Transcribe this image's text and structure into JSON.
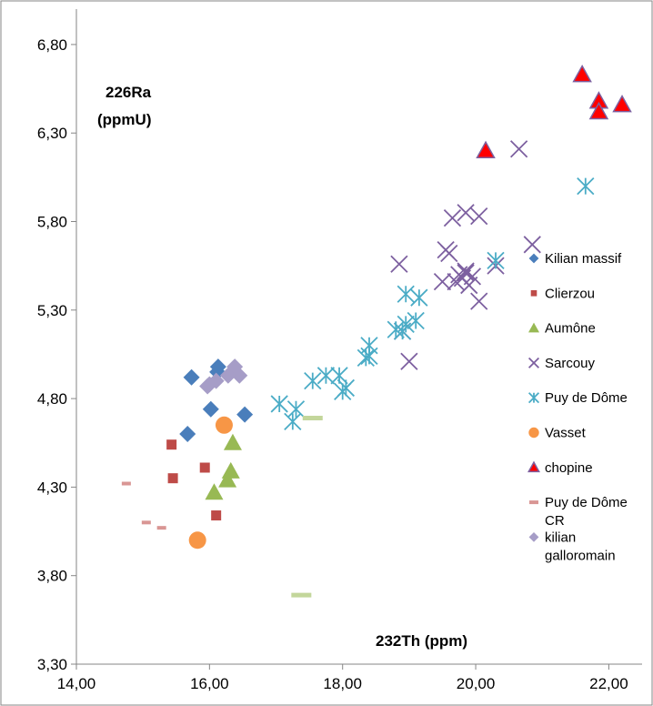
{
  "chart_data": {
    "type": "scatter",
    "title": "",
    "ylabel_line1": "226Ra",
    "ylabel_line2": "(ppmU)",
    "xlabel": "232Th (ppm)",
    "xlim": [
      14,
      22.5
    ],
    "ylim": [
      3.3,
      7.0
    ],
    "x_ticks": [
      "14,00",
      "16,00",
      "18,00",
      "20,00",
      "22,00"
    ],
    "y_ticks": [
      "3,30",
      "3,80",
      "4,30",
      "4,80",
      "5,30",
      "5,80",
      "6,30",
      "6,80"
    ],
    "grid": false,
    "legend_position": "right",
    "series": [
      {
        "name": "Kilian massif",
        "marker": "diamond",
        "color": "#4a7ebb",
        "x": [
          15.73,
          16.13,
          16.12,
          16.02,
          16.53,
          15.67
        ],
        "y": [
          4.92,
          4.98,
          4.95,
          4.74,
          4.71,
          4.6
        ]
      },
      {
        "name": "Clierzou",
        "marker": "square",
        "color": "#be4b48",
        "x": [
          15.43,
          15.45,
          15.93,
          16.1
        ],
        "y": [
          4.54,
          4.35,
          4.41,
          4.14
        ]
      },
      {
        "name": "Aumône",
        "marker": "triangle",
        "color": "#98b954",
        "x": [
          16.35,
          16.32,
          16.27,
          16.07
        ],
        "y": [
          4.55,
          4.39,
          4.34,
          4.27
        ]
      },
      {
        "name": "Sarcouy",
        "marker": "x",
        "color": "#7d60a0",
        "x": [
          20.65,
          19.65,
          19.85,
          20.05,
          19.55,
          20.85,
          19.6,
          18.85,
          19.75,
          19.85,
          19.95,
          19.8,
          19.7,
          19.9,
          19.5,
          19.85,
          20.3,
          20.05,
          18.9,
          19.0
        ],
        "y": [
          6.21,
          5.82,
          5.85,
          5.83,
          5.64,
          5.67,
          5.62,
          5.56,
          5.5,
          5.52,
          5.49,
          5.48,
          5.46,
          5.44,
          5.46,
          5.51,
          5.55,
          5.35,
          5.18,
          5.01
        ]
      },
      {
        "name": "Puy de Dôme",
        "marker": "star",
        "color": "#4bacc6",
        "x": [
          21.65,
          20.3,
          18.95,
          19.15,
          19.1,
          18.95,
          18.8,
          18.9,
          18.4,
          18.4,
          18.35,
          17.95,
          17.75,
          17.55,
          18.05,
          18.0,
          17.05,
          17.3,
          17.25
        ],
        "y": [
          6.0,
          5.58,
          5.39,
          5.37,
          5.24,
          5.22,
          5.19,
          5.18,
          5.1,
          5.04,
          5.03,
          4.93,
          4.93,
          4.9,
          4.86,
          4.84,
          4.77,
          4.74,
          4.67
        ]
      },
      {
        "name": "Vasset",
        "marker": "circle",
        "color": "#f79646",
        "x": [
          16.22,
          15.82
        ],
        "y": [
          4.65,
          4.0
        ]
      },
      {
        "name": "chopine",
        "marker": "triangle-outline",
        "color": "#ff0000",
        "x": [
          21.6,
          21.85,
          21.85,
          22.2,
          20.15
        ],
        "y": [
          6.63,
          6.48,
          6.42,
          6.46,
          6.2
        ]
      },
      {
        "name": "Puy de Dôme CR",
        "marker": "dash",
        "color": "#d99694",
        "x": [
          14.75,
          15.05,
          15.28
        ],
        "y": [
          4.32,
          4.1,
          4.07
        ]
      },
      {
        "name": "kilian galloromain",
        "marker": "diamond",
        "color": "#a69dc7",
        "x": [
          16.38,
          16.45,
          16.28,
          16.1,
          16.0,
          15.97
        ],
        "y": [
          4.98,
          4.93,
          4.93,
          4.9,
          4.88,
          4.87
        ]
      },
      {
        "name": "",
        "marker": "dash",
        "color": "#c3d69b",
        "no_legend": true,
        "x": [
          17.55,
          17.38
        ],
        "y": [
          4.69,
          3.69
        ]
      }
    ]
  }
}
